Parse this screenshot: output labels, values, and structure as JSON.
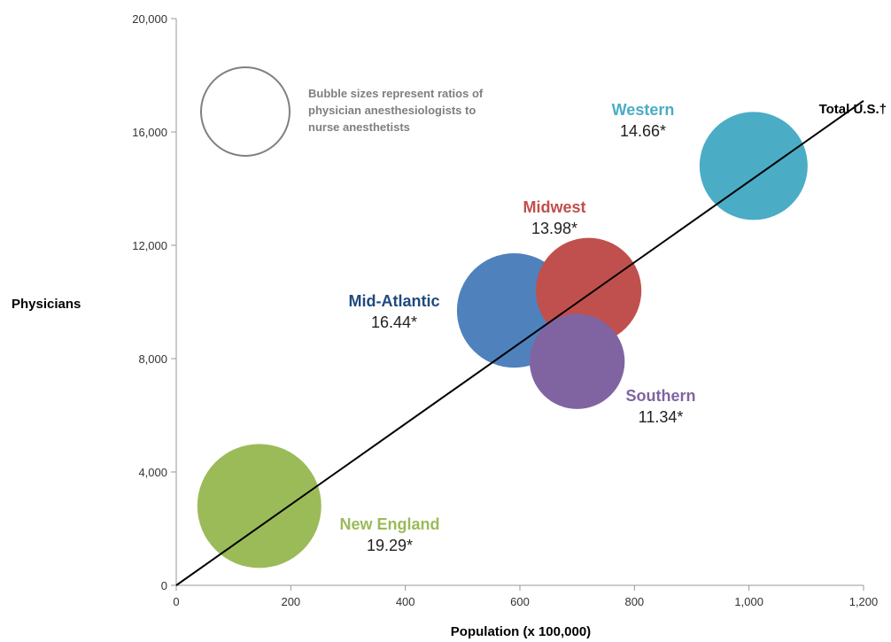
{
  "chart_data": {
    "type": "scatter",
    "subtype": "bubble",
    "xlabel": "Population (x 100,000)",
    "ylabel": "Physicians",
    "xlim": [
      0,
      1200
    ],
    "ylim": [
      0,
      20000
    ],
    "x_ticks": [
      0,
      200,
      400,
      600,
      800,
      1000,
      1200
    ],
    "x_tick_labels": [
      "0",
      "200",
      "400",
      "600",
      "800",
      "1,000",
      "1,200"
    ],
    "y_ticks": [
      0,
      4000,
      8000,
      12000,
      16000,
      20000
    ],
    "y_tick_labels": [
      "0",
      "4,000",
      "8,000",
      "12,000",
      "16,000",
      "20,000"
    ],
    "grid": false,
    "size_note": "Bubble sizes represent ratios of physician anesthesiologists to nurse anesthetists",
    "size_note_lines": [
      "Bubble sizes represent ratios of",
      "physician anesthesiologists to",
      "nurse anesthetists"
    ],
    "trendline": {
      "name": "Total U.S.",
      "label": "Total U.S.†",
      "points": [
        [
          0,
          0
        ],
        [
          1200,
          17100
        ]
      ],
      "color": "#000000"
    },
    "series": [
      {
        "region": "New England",
        "x": 145,
        "y": 2800,
        "ratio": 19.29,
        "ratio_label": "19.29*",
        "color": "#9bbb59",
        "name_color": "#9bbb59"
      },
      {
        "region": "Mid-Atlantic",
        "x": 590,
        "y": 9700,
        "ratio": 16.44,
        "ratio_label": "16.44*",
        "color": "#4f81bd",
        "name_color": "#1f497d"
      },
      {
        "region": "Midwest",
        "x": 720,
        "y": 10400,
        "ratio": 13.98,
        "ratio_label": "13.98*",
        "color": "#c0504d",
        "name_color": "#c0504d"
      },
      {
        "region": "Southern",
        "x": 700,
        "y": 7900,
        "ratio": 11.34,
        "ratio_label": "11.34*",
        "color": "#8064a2",
        "name_color": "#8064a2"
      },
      {
        "region": "Western",
        "x": 1008,
        "y": 14800,
        "ratio": 14.66,
        "ratio_label": "14.66*",
        "color": "#4bacc6",
        "name_color": "#4bacc6"
      }
    ]
  }
}
